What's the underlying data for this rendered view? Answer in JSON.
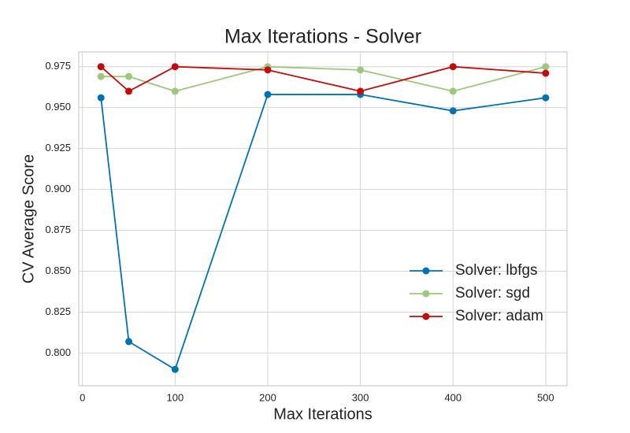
{
  "chart_data": {
    "type": "line",
    "title": "Max Iterations - Solver",
    "xlabel": "Max Iterations",
    "ylabel": "CV Average Score",
    "x": [
      20,
      50,
      100,
      200,
      300,
      400,
      500
    ],
    "series": [
      {
        "name": "Solver: lbfgs",
        "color": "#0072b2",
        "values": [
          0.956,
          0.807,
          0.79,
          0.958,
          0.958,
          0.948,
          0.956
        ]
      },
      {
        "name": "Solver: sgd",
        "color": "#9dc77a",
        "values": [
          0.969,
          0.969,
          0.96,
          0.975,
          0.973,
          0.96,
          0.975
        ]
      },
      {
        "name": "Solver: adam",
        "color": "#c40a0a",
        "values": [
          0.975,
          0.96,
          0.975,
          0.973,
          0.96,
          0.975,
          0.971
        ]
      }
    ],
    "xlim": [
      -4,
      523
    ],
    "ylim": [
      0.78,
      0.984
    ],
    "xticks": [
      0,
      100,
      200,
      300,
      400,
      500
    ],
    "yticks": [
      {
        "value": 0.8,
        "label": "0.800"
      },
      0.825,
      {
        "value": 0.85,
        "label": "0.850"
      },
      0.875,
      {
        "value": 0.9,
        "label": "0.900"
      },
      0.925,
      {
        "value": 0.95,
        "label": "0.950"
      },
      0.975
    ],
    "grid": true,
    "legend": "lower right"
  }
}
